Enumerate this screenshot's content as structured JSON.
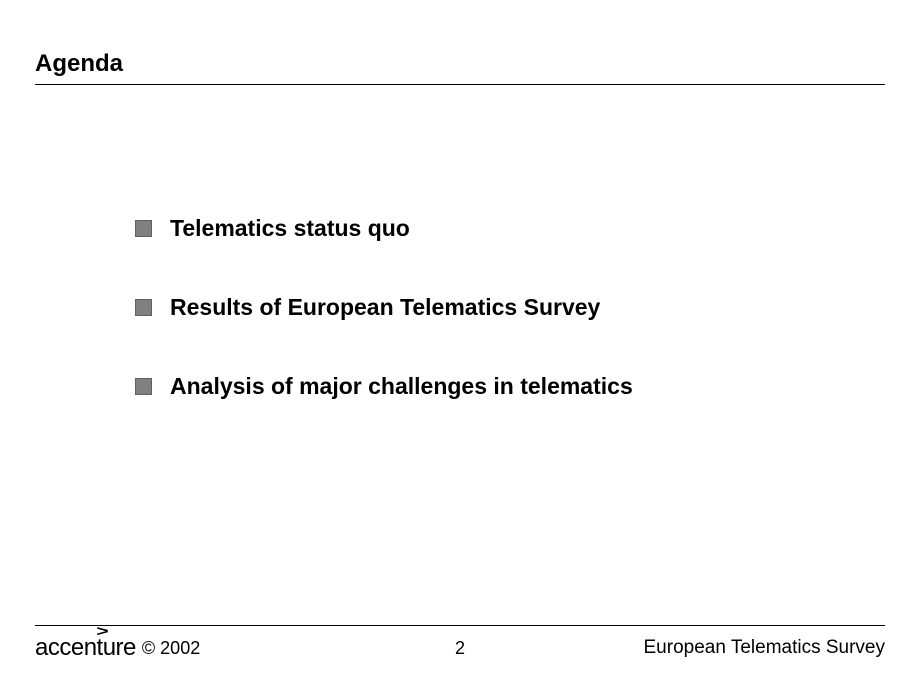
{
  "slide": {
    "title": "Agenda",
    "bullets": [
      "Telematics status quo",
      "Results of European Telematics Survey",
      "Analysis of major challenges in telematics"
    ],
    "bullet_color": "#808080"
  },
  "footer": {
    "logo_text": "accenture",
    "copyright": "© 2002",
    "page_number": "2",
    "right_text": "European Telematics Survey"
  }
}
